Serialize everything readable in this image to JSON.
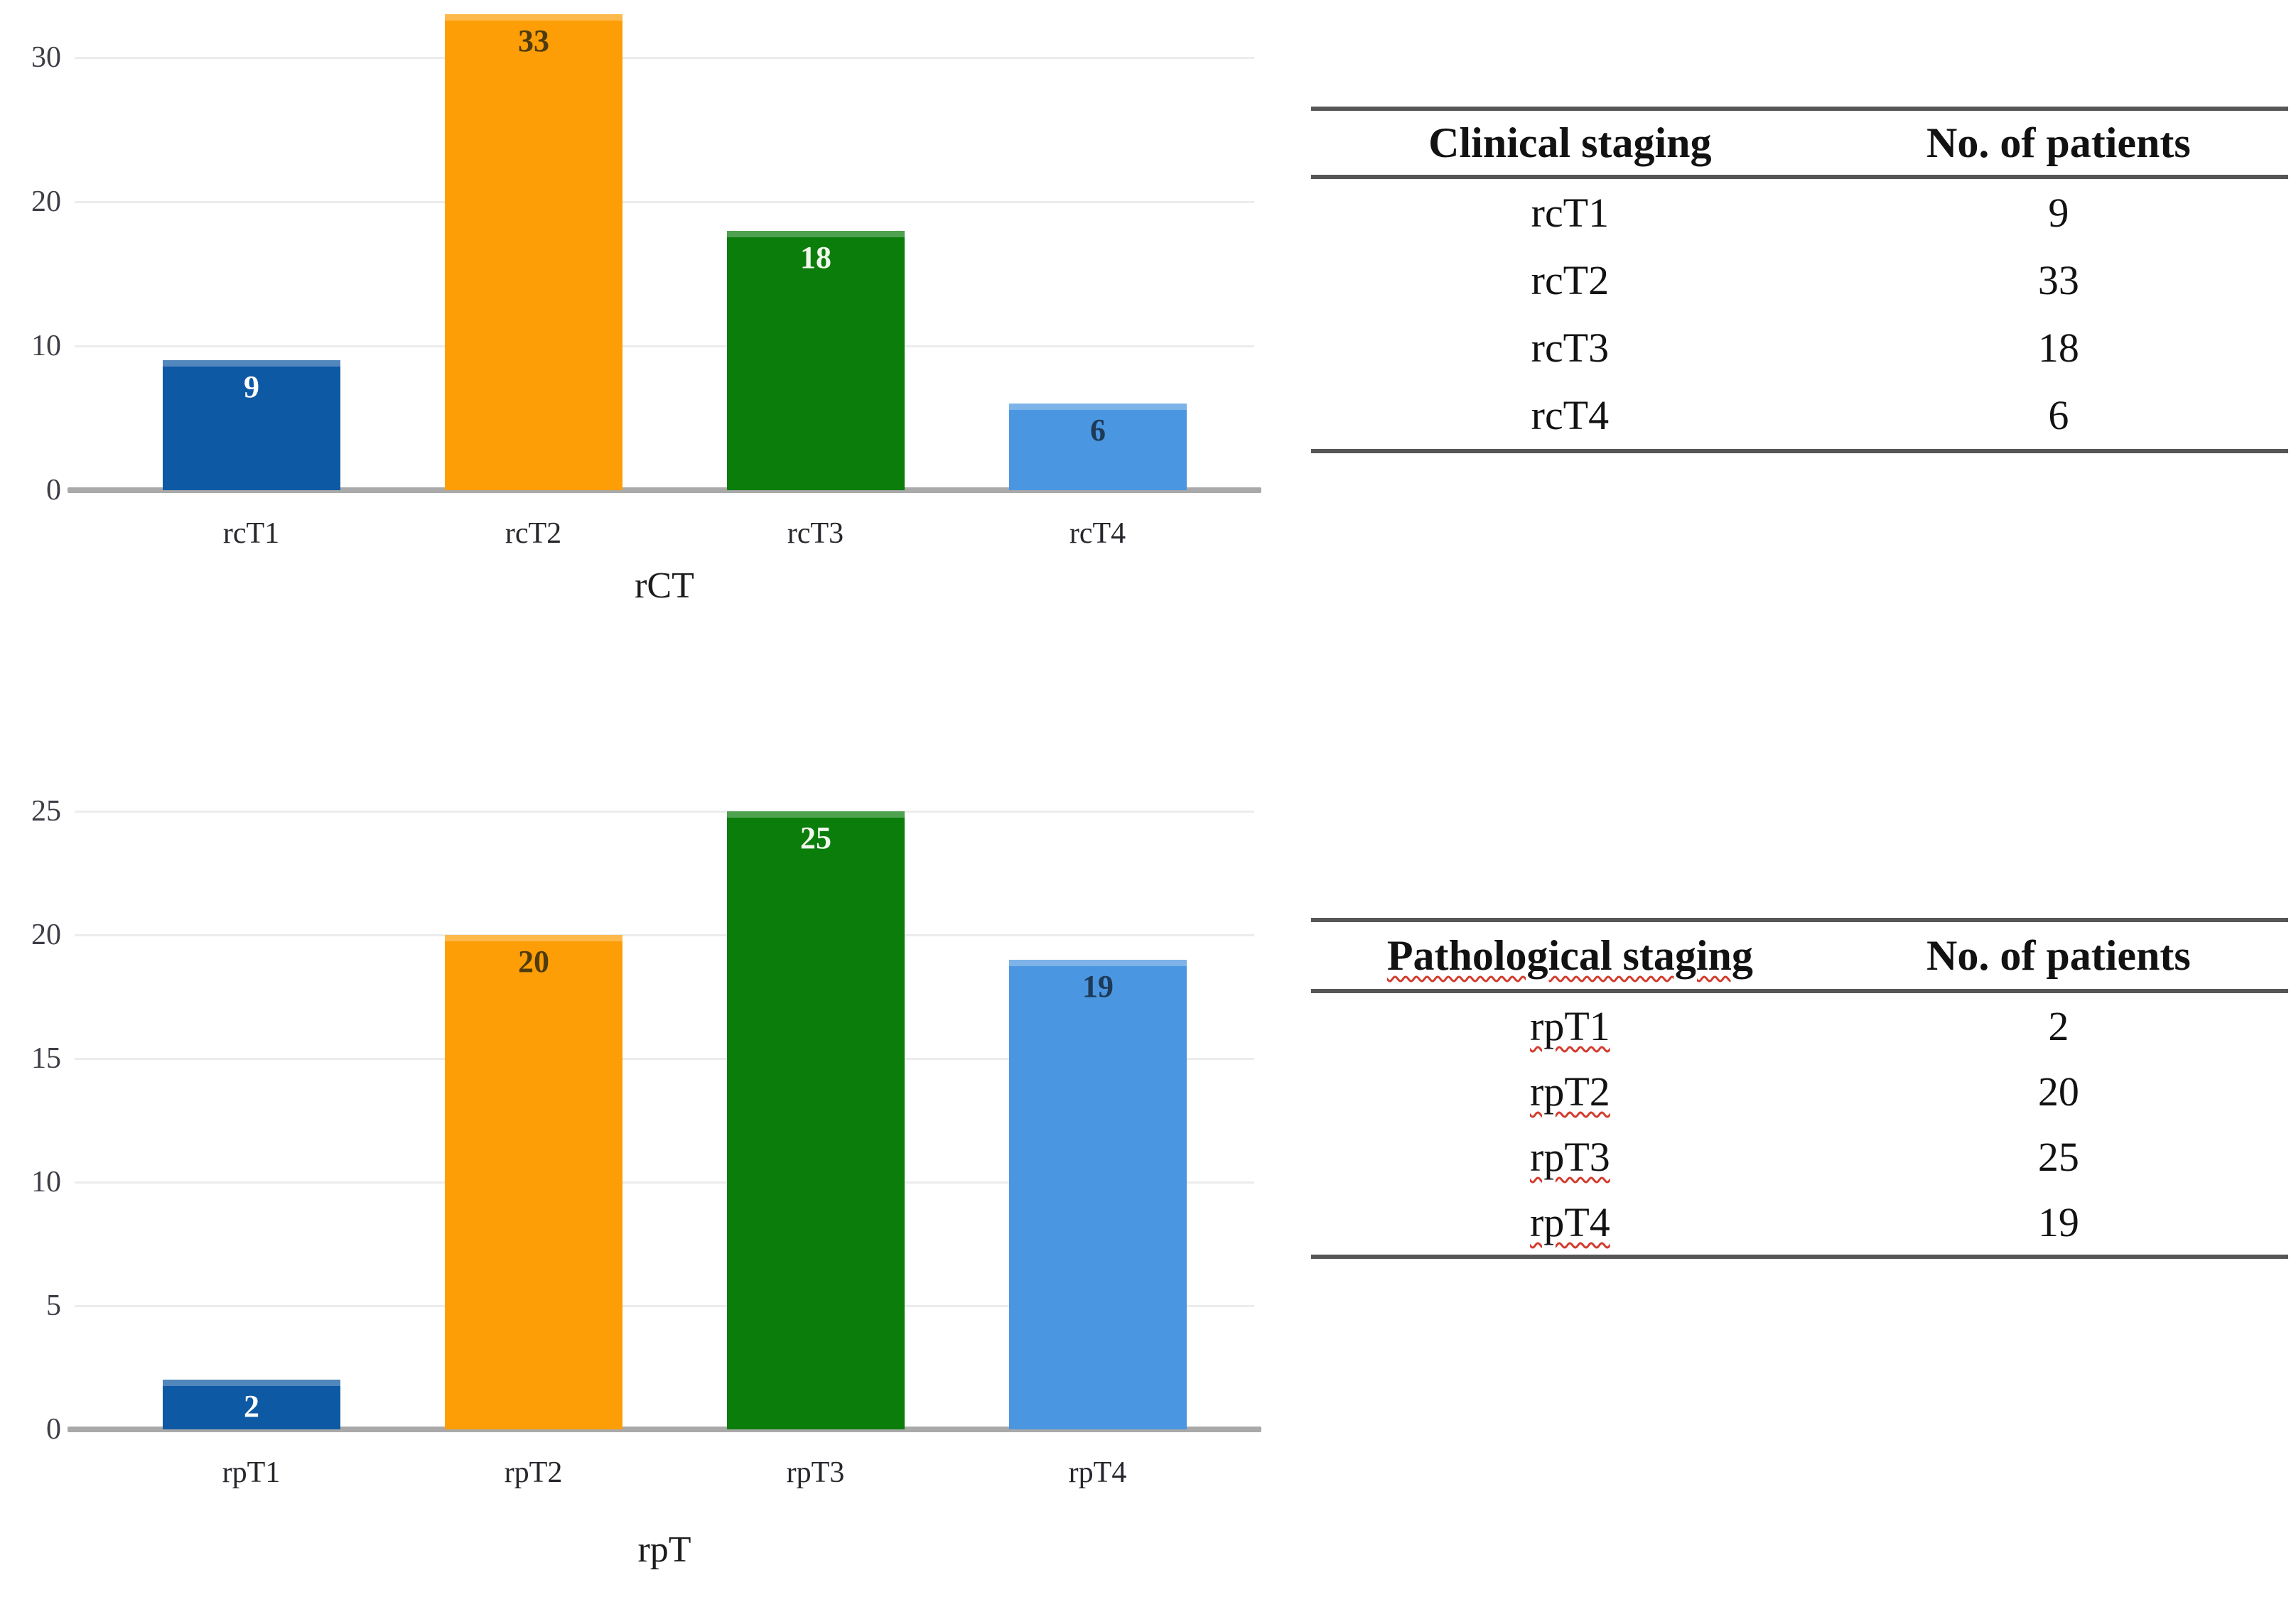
{
  "colors": {
    "background": "#ffffff",
    "gridline": "#ececec",
    "axis_line": "#a9a9a9",
    "tick_text": "#3d3d46",
    "x_label_text": "#26262c",
    "title_text": "#1c1c1c",
    "table_rule": "#565656",
    "table_text": "#121212",
    "spellcheck": "#d23b2e",
    "bar_dark_blue": "#0e59a3",
    "bar_orange": "#fe9e06",
    "bar_green": "#0a7d0a",
    "bar_light_blue": "#4b96e0"
  },
  "chart_data": [
    {
      "type": "bar",
      "name": "clinical-staging-distribution",
      "title": "rCT",
      "xlabel": "rCT",
      "ylabel": "",
      "categories": [
        "rcT1",
        "rcT2",
        "rcT3",
        "rcT4"
      ],
      "values": [
        9,
        33,
        18,
        6
      ],
      "bar_colors": [
        "#0e59a3",
        "#fe9e06",
        "#0a7d0a",
        "#4b96e0"
      ],
      "value_label_colors": [
        "#ffffff",
        "#4e3c10",
        "#f2f7ee",
        "#1d3a57"
      ],
      "yticks": [
        0,
        10,
        20,
        30
      ],
      "ylim": [
        0,
        33.5
      ],
      "grid": true,
      "legend": "none"
    },
    {
      "type": "bar",
      "name": "pathological-staging-distribution",
      "title": "rpT",
      "xlabel": "rpT",
      "ylabel": "",
      "categories": [
        "rpT1",
        "rpT2",
        "rpT3",
        "rpT4"
      ],
      "values": [
        2,
        20,
        25,
        19
      ],
      "bar_colors": [
        "#0e59a3",
        "#fe9e06",
        "#0a7d0a",
        "#4b96e0"
      ],
      "value_label_colors": [
        "#ffffff",
        "#4e3c10",
        "#f2f7ee",
        "#1d3a57"
      ],
      "yticks": [
        0,
        5,
        10,
        15,
        20,
        25
      ],
      "ylim": [
        0,
        26.3
      ],
      "grid": true,
      "legend": "none"
    }
  ],
  "tables": {
    "clinical": {
      "headers": [
        "Clinical staging",
        "No. of patients"
      ],
      "rows": [
        [
          "rcT1",
          "9"
        ],
        [
          "rcT2",
          "33"
        ],
        [
          "rcT3",
          "18"
        ],
        [
          "rcT4",
          "6"
        ]
      ]
    },
    "pathological": {
      "headers": [
        "Pathological staging",
        "No. of patients"
      ],
      "rows": [
        [
          "rpT1",
          "2"
        ],
        [
          "rpT2",
          "20"
        ],
        [
          "rpT3",
          "25"
        ],
        [
          "rpT4",
          "19"
        ]
      ]
    }
  }
}
